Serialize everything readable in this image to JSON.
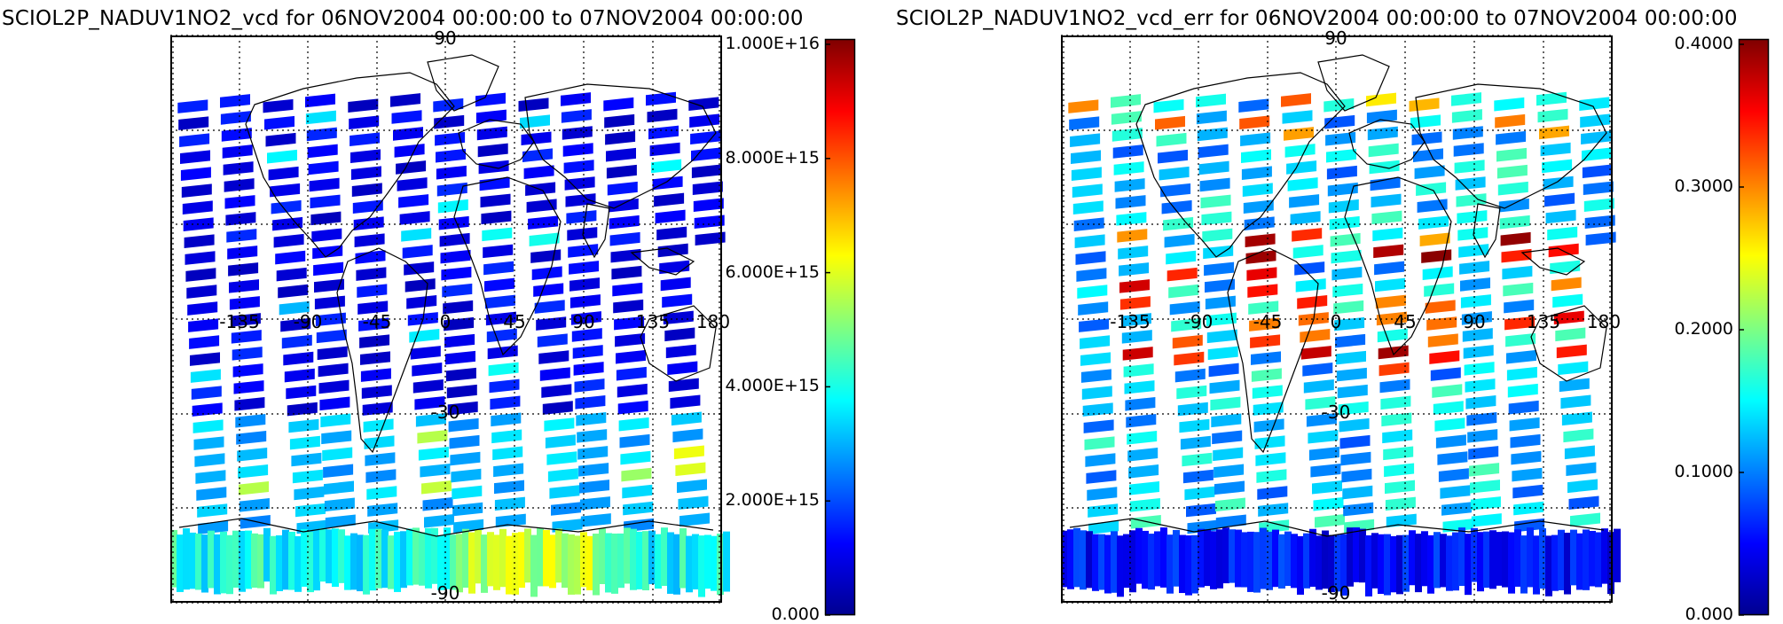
{
  "panels": [
    {
      "title": "SCIOL2P_NADUV1NO2_vcd for 06NOV2004 00:00:00 to 07NOV2004 00:00:00",
      "variable": "vcd",
      "colorbar": {
        "min": 0,
        "max": 1e+16,
        "tick_labels": [
          "0.000",
          "2.000E+15",
          "4.000E+15",
          "6.000E+15",
          "8.000E+15",
          "1.000E+16"
        ],
        "colormap": "jet"
      }
    },
    {
      "title": "SCIOL2P_NADUV1NO2_vcd_err for 06NOV2004 00:00:00 to 07NOV2004 00:00:00",
      "variable": "vcd_err",
      "colorbar": {
        "min": 0,
        "max": 0.4,
        "tick_labels": [
          "0.000",
          "0.1000",
          "0.2000",
          "0.3000",
          "0.4000"
        ],
        "colormap": "jet"
      }
    }
  ],
  "map_labels": {
    "lon": [
      "-135",
      "-90",
      "-45",
      "0",
      "45",
      "90",
      "135",
      "180"
    ],
    "lat_top": "90",
    "lat_mid": "-30",
    "lat_bottom": "-90"
  },
  "colors": {
    "jet": [
      "#00008f",
      "#0000ff",
      "#0080ff",
      "#00ffff",
      "#80ff80",
      "#ffff00",
      "#ff8000",
      "#ff0000",
      "#800000"
    ],
    "continent_outline": "#000000",
    "grid": "#000000"
  }
}
